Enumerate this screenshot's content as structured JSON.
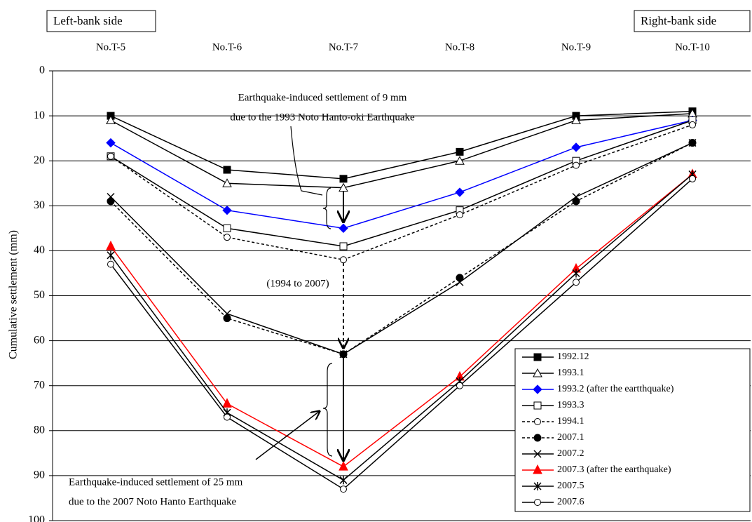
{
  "chart_data": {
    "type": "line",
    "y_label": "Cumulative settlement (mm)",
    "left_label": "Left-bank side",
    "right_label": "Right-bank side",
    "categories": [
      "No.T-5",
      "No.T-6",
      "No.T-7",
      "No.T-8",
      "No.T-9",
      "No.T-10"
    ],
    "ylim": [
      0,
      100
    ],
    "y_inverted": true,
    "yticks": [
      0,
      10,
      20,
      30,
      40,
      50,
      60,
      70,
      80,
      90,
      100
    ],
    "grid": true,
    "legend": "lower-right",
    "annotations": [
      "Earthquake-induced settlement of 9 mm",
      "due to the 1993 Noto Hanto-oki Earthquake",
      "(1994 to 2007)",
      "Earthquake-induced settlement of 25 mm",
      "due to the 2007 Noto Hanto Earthquake"
    ],
    "series": [
      {
        "name": "1992.12",
        "color": "#000000",
        "marker": "square-filled",
        "dashed": false,
        "values": [
          10,
          22,
          24,
          18,
          10,
          9
        ]
      },
      {
        "name": "1993.1",
        "color": "#000000",
        "marker": "triangle-open",
        "dashed": false,
        "values": [
          11,
          25,
          26,
          20,
          11,
          9.5
        ]
      },
      {
        "name": "1993.2 (after the eartthquake)",
        "color": "#0000ff",
        "marker": "diamond-filled",
        "dashed": false,
        "values": [
          16,
          31,
          35,
          27,
          17,
          11
        ]
      },
      {
        "name": "1993.3",
        "color": "#000000",
        "marker": "square-open",
        "dashed": false,
        "values": [
          19,
          35,
          39,
          31,
          20,
          11
        ]
      },
      {
        "name": "1994.1",
        "color": "#000000",
        "marker": "circle-open",
        "dashed": true,
        "values": [
          19,
          37,
          42,
          32,
          21,
          12
        ]
      },
      {
        "name": "2007.1",
        "color": "#000000",
        "marker": "circle-filled",
        "dashed": true,
        "values": [
          29,
          55,
          63,
          46,
          29,
          16
        ]
      },
      {
        "name": "2007.2",
        "color": "#000000",
        "marker": "x",
        "dashed": false,
        "values": [
          28,
          54,
          63,
          47,
          28,
          16
        ]
      },
      {
        "name": "2007.3 (after the earthquake)",
        "color": "#ff0000",
        "marker": "triangle-filled",
        "dashed": false,
        "values": [
          39,
          74,
          88,
          68,
          44,
          23
        ]
      },
      {
        "name": "2007.5",
        "color": "#000000",
        "marker": "asterisk",
        "dashed": false,
        "values": [
          41,
          76,
          91,
          69,
          45,
          23
        ]
      },
      {
        "name": "2007.6",
        "color": "#000000",
        "marker": "circle-open",
        "dashed": false,
        "values": [
          43,
          77,
          93,
          70,
          47,
          24
        ]
      }
    ]
  }
}
